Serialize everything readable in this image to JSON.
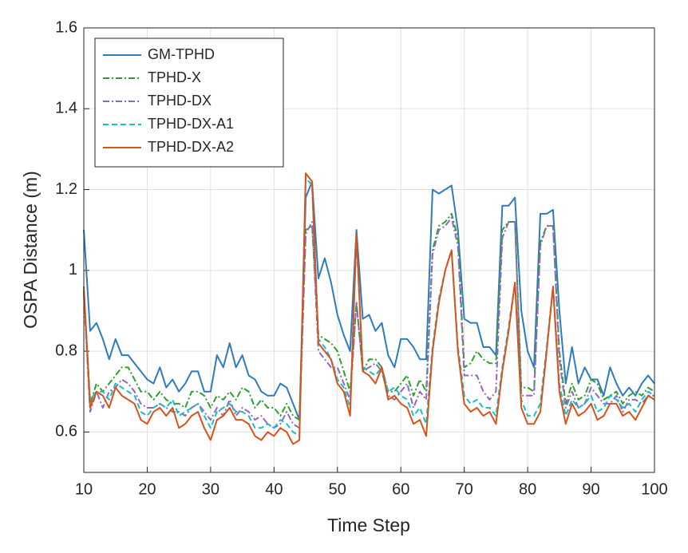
{
  "chart_data": {
    "type": "line",
    "xlabel": "Time Step",
    "ylabel": "OSPA Distance (m)",
    "x": [
      10,
      11,
      12,
      13,
      14,
      15,
      16,
      17,
      18,
      19,
      20,
      21,
      22,
      23,
      24,
      25,
      26,
      27,
      28,
      29,
      30,
      31,
      32,
      33,
      34,
      35,
      36,
      37,
      38,
      39,
      40,
      41,
      42,
      43,
      44,
      45,
      46,
      47,
      48,
      49,
      50,
      51,
      52,
      53,
      54,
      55,
      56,
      57,
      58,
      59,
      60,
      61,
      62,
      63,
      64,
      65,
      66,
      67,
      68,
      69,
      70,
      71,
      72,
      73,
      74,
      75,
      76,
      77,
      78,
      79,
      80,
      81,
      82,
      83,
      84,
      85,
      86,
      87,
      88,
      89,
      90,
      91,
      92,
      93,
      94,
      95,
      96,
      97,
      98,
      99,
      100
    ],
    "series": [
      {
        "name": "GM-TPHD",
        "color": "#2e7bbd",
        "linestyle": "-",
        "values": [
          1.1,
          0.85,
          0.87,
          0.83,
          0.78,
          0.83,
          0.79,
          0.79,
          0.77,
          0.75,
          0.73,
          0.72,
          0.76,
          0.71,
          0.73,
          0.7,
          0.72,
          0.75,
          0.75,
          0.7,
          0.7,
          0.79,
          0.76,
          0.82,
          0.76,
          0.79,
          0.74,
          0.73,
          0.7,
          0.69,
          0.69,
          0.72,
          0.71,
          0.67,
          0.63,
          1.18,
          1.22,
          0.98,
          1.03,
          0.97,
          0.89,
          0.84,
          0.8,
          1.1,
          0.88,
          0.89,
          0.85,
          0.87,
          0.79,
          0.76,
          0.83,
          0.83,
          0.81,
          0.78,
          0.78,
          1.2,
          1.19,
          1.2,
          1.21,
          1.1,
          0.88,
          0.87,
          0.87,
          0.81,
          0.81,
          0.79,
          1.16,
          1.16,
          1.18,
          0.9,
          0.8,
          0.76,
          1.14,
          1.14,
          1.15,
          0.9,
          0.72,
          0.81,
          0.72,
          0.76,
          0.73,
          0.73,
          0.69,
          0.76,
          0.72,
          0.69,
          0.71,
          0.69,
          0.72,
          0.74,
          0.72
        ]
      },
      {
        "name": "TPHD-X",
        "color": "#2ca02c",
        "linestyle": "-.",
        "values": [
          0.95,
          0.67,
          0.72,
          0.7,
          0.72,
          0.74,
          0.76,
          0.76,
          0.73,
          0.7,
          0.7,
          0.68,
          0.7,
          0.68,
          0.67,
          0.67,
          0.66,
          0.7,
          0.7,
          0.69,
          0.66,
          0.69,
          0.68,
          0.7,
          0.68,
          0.71,
          0.7,
          0.66,
          0.68,
          0.66,
          0.66,
          0.64,
          0.67,
          0.64,
          0.63,
          1.1,
          1.11,
          0.84,
          0.83,
          0.82,
          0.8,
          0.75,
          0.7,
          0.92,
          0.75,
          0.78,
          0.78,
          0.76,
          0.7,
          0.7,
          0.72,
          0.74,
          0.69,
          0.73,
          0.7,
          1.05,
          1.11,
          1.12,
          1.14,
          1.08,
          0.76,
          0.77,
          0.8,
          0.78,
          0.77,
          0.77,
          1.1,
          1.12,
          1.12,
          0.71,
          0.71,
          0.7,
          1.07,
          1.11,
          1.11,
          0.8,
          0.67,
          0.72,
          0.68,
          0.69,
          0.73,
          0.72,
          0.68,
          0.69,
          0.7,
          0.67,
          0.69,
          0.7,
          0.69,
          0.71,
          0.7
        ]
      },
      {
        "name": "TPHD-DX",
        "color": "#9467bd",
        "linestyle": "-.",
        "values": [
          0.94,
          0.65,
          0.7,
          0.66,
          0.7,
          0.71,
          0.73,
          0.72,
          0.7,
          0.67,
          0.66,
          0.66,
          0.67,
          0.66,
          0.65,
          0.65,
          0.64,
          0.66,
          0.67,
          0.65,
          0.63,
          0.66,
          0.64,
          0.68,
          0.64,
          0.66,
          0.65,
          0.63,
          0.64,
          0.62,
          0.61,
          0.62,
          0.65,
          0.62,
          0.61,
          1.09,
          1.12,
          0.8,
          0.78,
          0.76,
          0.76,
          0.72,
          0.68,
          0.92,
          0.75,
          0.76,
          0.77,
          0.75,
          0.69,
          0.68,
          0.7,
          0.72,
          0.66,
          0.7,
          0.68,
          1.04,
          1.1,
          1.11,
          1.13,
          1.06,
          0.74,
          0.74,
          0.74,
          0.7,
          0.68,
          0.7,
          1.08,
          1.12,
          1.12,
          0.69,
          0.69,
          0.69,
          1.06,
          1.11,
          1.11,
          0.78,
          0.66,
          0.7,
          0.66,
          0.67,
          0.71,
          0.69,
          0.67,
          0.67,
          0.69,
          0.65,
          0.68,
          0.68,
          0.67,
          0.69,
          0.69
        ]
      },
      {
        "name": "TPHD-DX-A1",
        "color": "#17becf",
        "linestyle": "--",
        "values": [
          0.95,
          0.68,
          0.7,
          0.7,
          0.68,
          0.72,
          0.71,
          0.7,
          0.69,
          0.65,
          0.64,
          0.66,
          0.67,
          0.66,
          0.68,
          0.64,
          0.65,
          0.66,
          0.67,
          0.64,
          0.61,
          0.65,
          0.66,
          0.67,
          0.65,
          0.65,
          0.64,
          0.61,
          0.61,
          0.62,
          0.61,
          0.63,
          0.62,
          0.6,
          0.59,
          1.23,
          1.21,
          0.83,
          0.81,
          0.78,
          0.73,
          0.71,
          0.66,
          1.08,
          0.76,
          0.75,
          0.74,
          0.76,
          0.7,
          0.71,
          0.69,
          0.68,
          0.64,
          0.66,
          0.62,
          0.81,
          0.93,
          1.0,
          1.05,
          0.81,
          0.69,
          0.67,
          0.68,
          0.66,
          0.66,
          0.64,
          0.76,
          0.86,
          0.97,
          0.68,
          0.64,
          0.64,
          0.67,
          0.81,
          0.96,
          0.72,
          0.64,
          0.68,
          0.66,
          0.67,
          0.69,
          0.65,
          0.66,
          0.69,
          0.68,
          0.66,
          0.67,
          0.65,
          0.68,
          0.7,
          0.69
        ]
      },
      {
        "name": "TPHD-DX-A2",
        "color": "#d95319",
        "linestyle": "-",
        "values": [
          0.96,
          0.66,
          0.7,
          0.69,
          0.66,
          0.71,
          0.69,
          0.68,
          0.67,
          0.63,
          0.62,
          0.65,
          0.66,
          0.64,
          0.66,
          0.61,
          0.62,
          0.64,
          0.65,
          0.61,
          0.58,
          0.63,
          0.64,
          0.66,
          0.63,
          0.63,
          0.62,
          0.59,
          0.58,
          0.6,
          0.59,
          0.61,
          0.6,
          0.57,
          0.58,
          1.24,
          1.22,
          0.82,
          0.8,
          0.78,
          0.72,
          0.7,
          0.64,
          1.09,
          0.75,
          0.74,
          0.72,
          0.76,
          0.68,
          0.69,
          0.67,
          0.66,
          0.62,
          0.63,
          0.59,
          0.8,
          0.92,
          1.0,
          1.05,
          0.8,
          0.67,
          0.65,
          0.66,
          0.64,
          0.65,
          0.62,
          0.75,
          0.85,
          0.97,
          0.66,
          0.62,
          0.62,
          0.65,
          0.8,
          0.96,
          0.7,
          0.62,
          0.67,
          0.64,
          0.65,
          0.67,
          0.63,
          0.64,
          0.67,
          0.67,
          0.64,
          0.65,
          0.63,
          0.66,
          0.69,
          0.68
        ]
      }
    ],
    "xlim": [
      10,
      100
    ],
    "xticks": [
      10,
      20,
      30,
      40,
      50,
      60,
      70,
      80,
      90,
      100
    ],
    "ylim": [
      0.5,
      1.6
    ],
    "yticks": [
      0.6,
      0.8,
      1,
      1.2,
      1.4,
      1.6
    ],
    "grid": true,
    "legend": "top-left"
  }
}
